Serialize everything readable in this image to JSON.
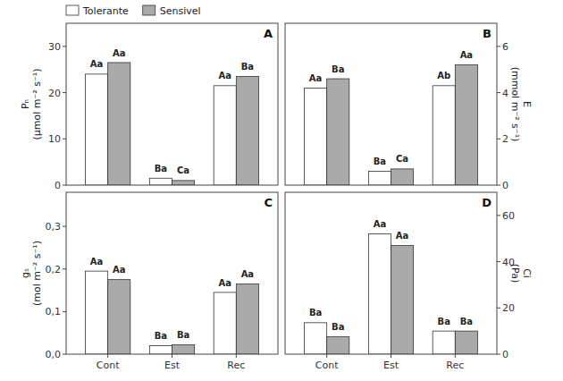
{
  "chart_data": [
    {
      "type": "bar",
      "title": "A",
      "categories": [
        "Cont",
        "Est",
        "Rec"
      ],
      "ylabel": "Pₙ\n(μmol m⁻² s⁻¹)",
      "series": [
        {
          "name": "Tolerante",
          "color": "#ffffff",
          "values": [
            24.0,
            1.5,
            21.5
          ],
          "annotations": [
            "Aa",
            "Ba",
            "Aa"
          ]
        },
        {
          "name": "Sensivel",
          "color": "#aaaaaa",
          "values": [
            26.5,
            1.0,
            23.5
          ],
          "annotations": [
            "Aa",
            "Ca",
            "Ba"
          ]
        }
      ],
      "ylim": [
        0,
        35
      ],
      "yticks": [
        0,
        10,
        20,
        30
      ],
      "legend": "upper left",
      "tick_labels": "y"
    },
    {
      "type": "bar",
      "title": "B",
      "categories": [
        "Cont",
        "Est",
        "Rec"
      ],
      "ylabel": "E\n(mmol m⁻² s⁻¹)",
      "series": [
        {
          "color": "#ffffff",
          "values": [
            4.2,
            0.6,
            4.3
          ],
          "annotations": [
            "Aa",
            "Ba",
            "Ab"
          ]
        },
        {
          "color": "#aaaaaa",
          "values": [
            4.6,
            0.7,
            5.2
          ],
          "annotations": [
            "Ba",
            "Ca",
            "Aa"
          ]
        }
      ],
      "ylim": [
        0,
        7
      ],
      "yticks": [
        0,
        2,
        4,
        6
      ],
      "tick_labels": "y"
    },
    {
      "type": "bar",
      "title": "C",
      "categories": [
        "Cont",
        "Est",
        "Rec"
      ],
      "ylabel": "gₛ\n(mol m⁻² s⁻¹)",
      "series": [
        {
          "color": "#ffffff",
          "values": [
            0.195,
            0.02,
            0.145
          ],
          "annotations": [
            "Aa",
            "Ba",
            "Aa"
          ]
        },
        {
          "color": "#aaaaaa",
          "values": [
            0.175,
            0.022,
            0.165
          ],
          "annotations": [
            "Aa",
            "Ba",
            "Aa"
          ]
        }
      ],
      "ylim": [
        0,
        0.38
      ],
      "yticks": [
        {
          "value": 0.0,
          "label": "0,0"
        },
        {
          "value": 0.1,
          "label": "0,1"
        },
        {
          "value": 0.2,
          "label": "0,2"
        },
        {
          "value": 0.3,
          "label": "0,3"
        }
      ]
    },
    {
      "type": "bar",
      "title": "D",
      "categories": [
        "Cont",
        "Est",
        "Rec"
      ],
      "ylabel": "Ci\n(Pa)",
      "series": [
        {
          "color": "#ffffff",
          "values": [
            13.6,
            52,
            10
          ],
          "annotations": [
            "Ba",
            "Aa",
            "Ba"
          ]
        },
        {
          "color": "#aaaaaa",
          "values": [
            7.6,
            47,
            10
          ],
          "annotations": [
            "Ba",
            "Aa",
            "Ba"
          ]
        }
      ],
      "ylim": [
        0,
        70
      ],
      "yticks": [
        0,
        20,
        40,
        60
      ]
    }
  ]
}
